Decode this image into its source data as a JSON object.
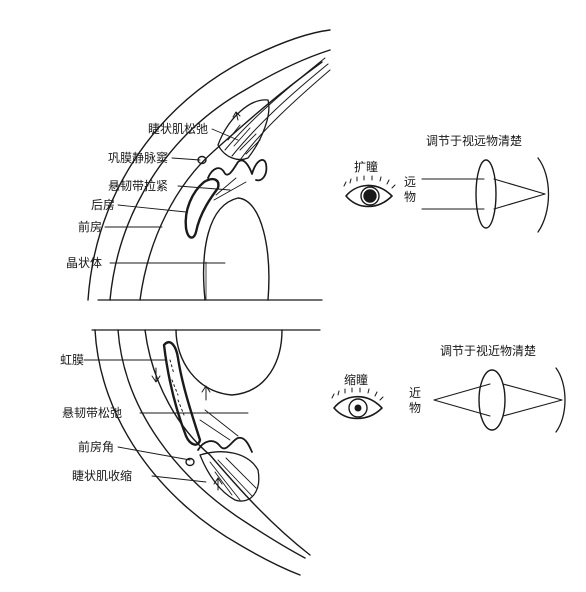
{
  "upper_panel": {
    "labels": {
      "ciliary_relaxed": "睫状肌松弛",
      "scleral_sinus": "巩膜静脉窦",
      "zonule_tight": "悬韧带拉紧",
      "posterior_chamber": "后房",
      "anterior_chamber": "前房",
      "lens": "晶状体"
    },
    "pupil_state": "扩瞳",
    "object_distance": "远物",
    "focus_caption": "调节于视远物清楚"
  },
  "lower_panel": {
    "labels": {
      "iris": "虹膜",
      "zonule_relaxed": "悬韧带松弛",
      "chamber_angle": "前房角",
      "ciliary_contracted": "睫状肌收缩"
    },
    "pupil_state": "缩瞳",
    "object_distance": "近物",
    "focus_caption": "调节于视近物清楚"
  },
  "colors": {
    "ink": "#1a1a1a",
    "paper": "#ffffff"
  }
}
